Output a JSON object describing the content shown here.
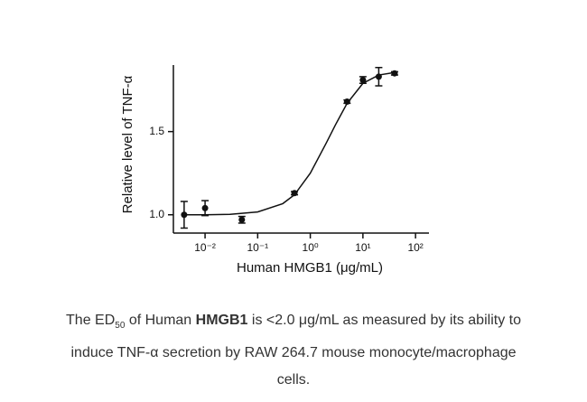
{
  "chart_data": {
    "type": "scatter",
    "xlog": true,
    "xlabel": "Human HMGB1 (μg/mL)",
    "ylabel": "Relative level of TNF-α",
    "x": [
      0.004,
      0.01,
      0.05,
      0.5,
      5,
      10,
      20,
      40
    ],
    "values": [
      1.0,
      1.04,
      0.97,
      1.13,
      1.68,
      1.81,
      1.83,
      1.85
    ],
    "errors": [
      0.08,
      0.045,
      0.02,
      0.01,
      0.01,
      0.02,
      0.055,
      0.01
    ],
    "curve": {
      "x": [
        0.004,
        0.01,
        0.03,
        0.1,
        0.3,
        0.5,
        1,
        2,
        3,
        5,
        10,
        20,
        40
      ],
      "values": [
        1.0,
        1.0,
        1.003,
        1.017,
        1.067,
        1.12,
        1.25,
        1.43,
        1.54,
        1.67,
        1.79,
        1.84,
        1.855
      ]
    },
    "color": "#111111",
    "xlim": [
      0.0025,
      180
    ],
    "ylim": [
      0.89,
      1.9
    ],
    "xticks": [
      {
        "value": 0.01,
        "label": "10⁻²"
      },
      {
        "value": 0.1,
        "label": "10⁻¹"
      },
      {
        "value": 1,
        "label": "10⁰"
      },
      {
        "value": 10,
        "label": "10¹"
      },
      {
        "value": 100,
        "label": "10²"
      }
    ],
    "yticks": [
      {
        "value": 1,
        "label": "1.0"
      },
      {
        "value": 1.5,
        "label": "1.5"
      }
    ]
  },
  "caption": {
    "parts": [
      "The ED",
      "50",
      " of Human ",
      "HMGB1",
      " is <2.0 μg/mL as measured by its ability to induce TNF-α secretion by RAW 264.7 mouse monocyte/macrophage cells."
    ]
  }
}
